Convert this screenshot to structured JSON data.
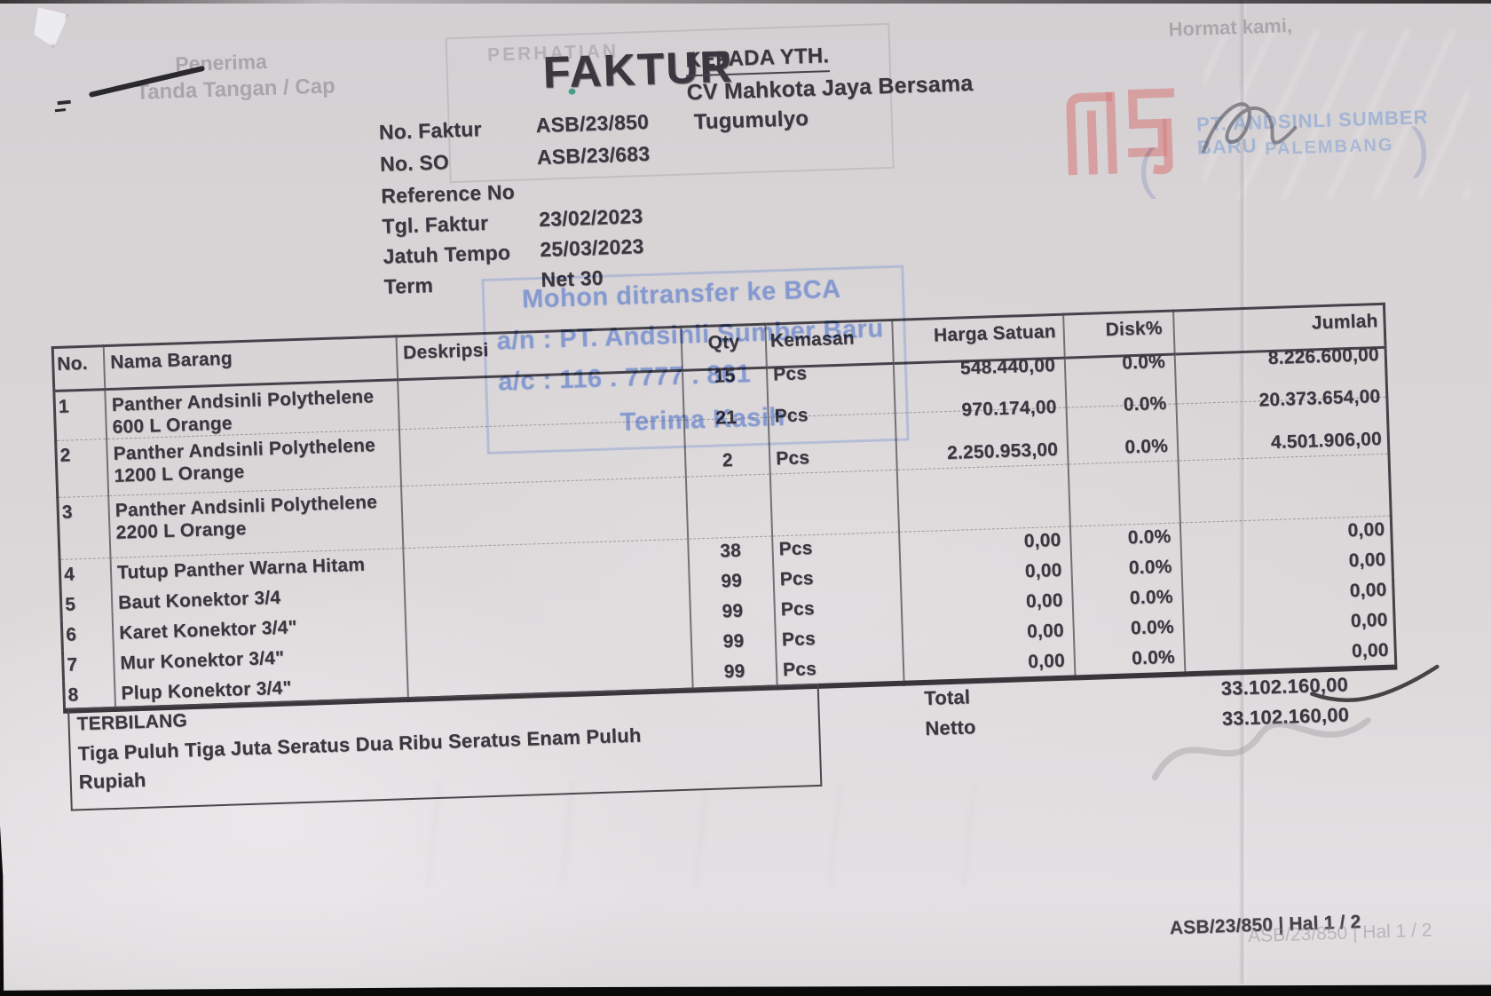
{
  "document": {
    "title_text": "FAKTUR",
    "recipient": {
      "label": "KEPADA YTH.",
      "name": "CV Mahkota Jaya Bersama",
      "city": "Tugumulyo"
    },
    "details": [
      {
        "label": "No. Faktur",
        "value": "ASB/23/850"
      },
      {
        "label": "No. SO",
        "value": "ASB/23/683"
      },
      {
        "label": "Reference No",
        "value": ""
      },
      {
        "label": "Tgl. Faktur",
        "value": "23/02/2023"
      },
      {
        "label": "Jatuh Tempo",
        "value": "25/03/2023"
      },
      {
        "label": "Term",
        "value": "Net 30"
      }
    ]
  },
  "table": {
    "headers": [
      "No.",
      "Nama Barang",
      "Deskripsi",
      "Qty",
      "Kemasan",
      "Harga Satuan",
      "Disk%",
      "Jumlah"
    ],
    "rows": [
      [
        "1",
        [
          "Panther Andsinli Polythelene",
          "600 L Orange"
        ],
        "",
        "15",
        "Pcs",
        "548.440,00",
        "0.0%",
        "8.226.600,00"
      ],
      [
        "2",
        [
          "Panther Andsinli Polythelene",
          "1200 L Orange"
        ],
        "",
        "21",
        "Pcs",
        "970.174,00",
        "0.0%",
        "20.373.654,00"
      ],
      [
        "3",
        [
          "Panther Andsinli Polythelene",
          "2200 L Orange"
        ],
        "",
        "2",
        "Pcs",
        "2.250.953,00",
        "0.0%",
        "4.501.906,00"
      ],
      [
        "4",
        [
          "Tutup Panther Warna Hitam"
        ],
        "",
        "38",
        "Pcs",
        "0,00",
        "0.0%",
        "0,00"
      ],
      [
        "5",
        [
          "Baut Konektor 3/4"
        ],
        "",
        "99",
        "Pcs",
        "0,00",
        "0.0%",
        "0,00"
      ],
      [
        "6",
        [
          "Karet Konektor 3/4\""
        ],
        "",
        "99",
        "Pcs",
        "0,00",
        "0.0%",
        "0,00"
      ],
      [
        "7",
        [
          "Mur Konektor 3/4\""
        ],
        "",
        "99",
        "Pcs",
        "0,00",
        "0.0%",
        "0,00"
      ],
      [
        "8",
        [
          "Plup Konektor 3/4\""
        ],
        "",
        "99",
        "Pcs",
        "0,00",
        "0.0%",
        "0,00"
      ]
    ],
    "total_label": "Total",
    "total_value": "33.102.160,00",
    "netto_label": "Netto",
    "netto_value": "33.102.160,00"
  },
  "terbilang": {
    "label": "TERBILANG",
    "line1": "Tiga Puluh Tiga Juta Seratus Dua Ribu Seratus Enam Puluh",
    "line2": "Rupiah"
  },
  "bank_stamp": {
    "line1": "Mohon ditransfer ke BCA",
    "line2": "a/n : PT. Andsinli Sumber Baru",
    "line3": "a/c : 116 . 7777 . 861",
    "line4": "Terima Kasih"
  },
  "stamps": {
    "hormat_kami": "Hormat kami,",
    "company_name": "PT. ANDSINLI SUMBER BARU",
    "company_city": "PALEMBANG",
    "paren_open": "(",
    "paren_close": ")",
    "perhatian": "PERHATIAN",
    "penerima_line1": "Penerima",
    "penerima_line2": "Tanda Tangan / Cap"
  },
  "footer": {
    "page_ref": "ASB/23/850 | Hal 1 / 2",
    "page_ref_ghost": "ASB/23/850 | Hal 1 / 2"
  },
  "colors": {
    "paper": "#d8d4d6",
    "ink": "#3a3740",
    "stamp_blue": "#7e96d2",
    "logo_red": "#d98b8b",
    "scanner_black": "#0b0a0b"
  }
}
